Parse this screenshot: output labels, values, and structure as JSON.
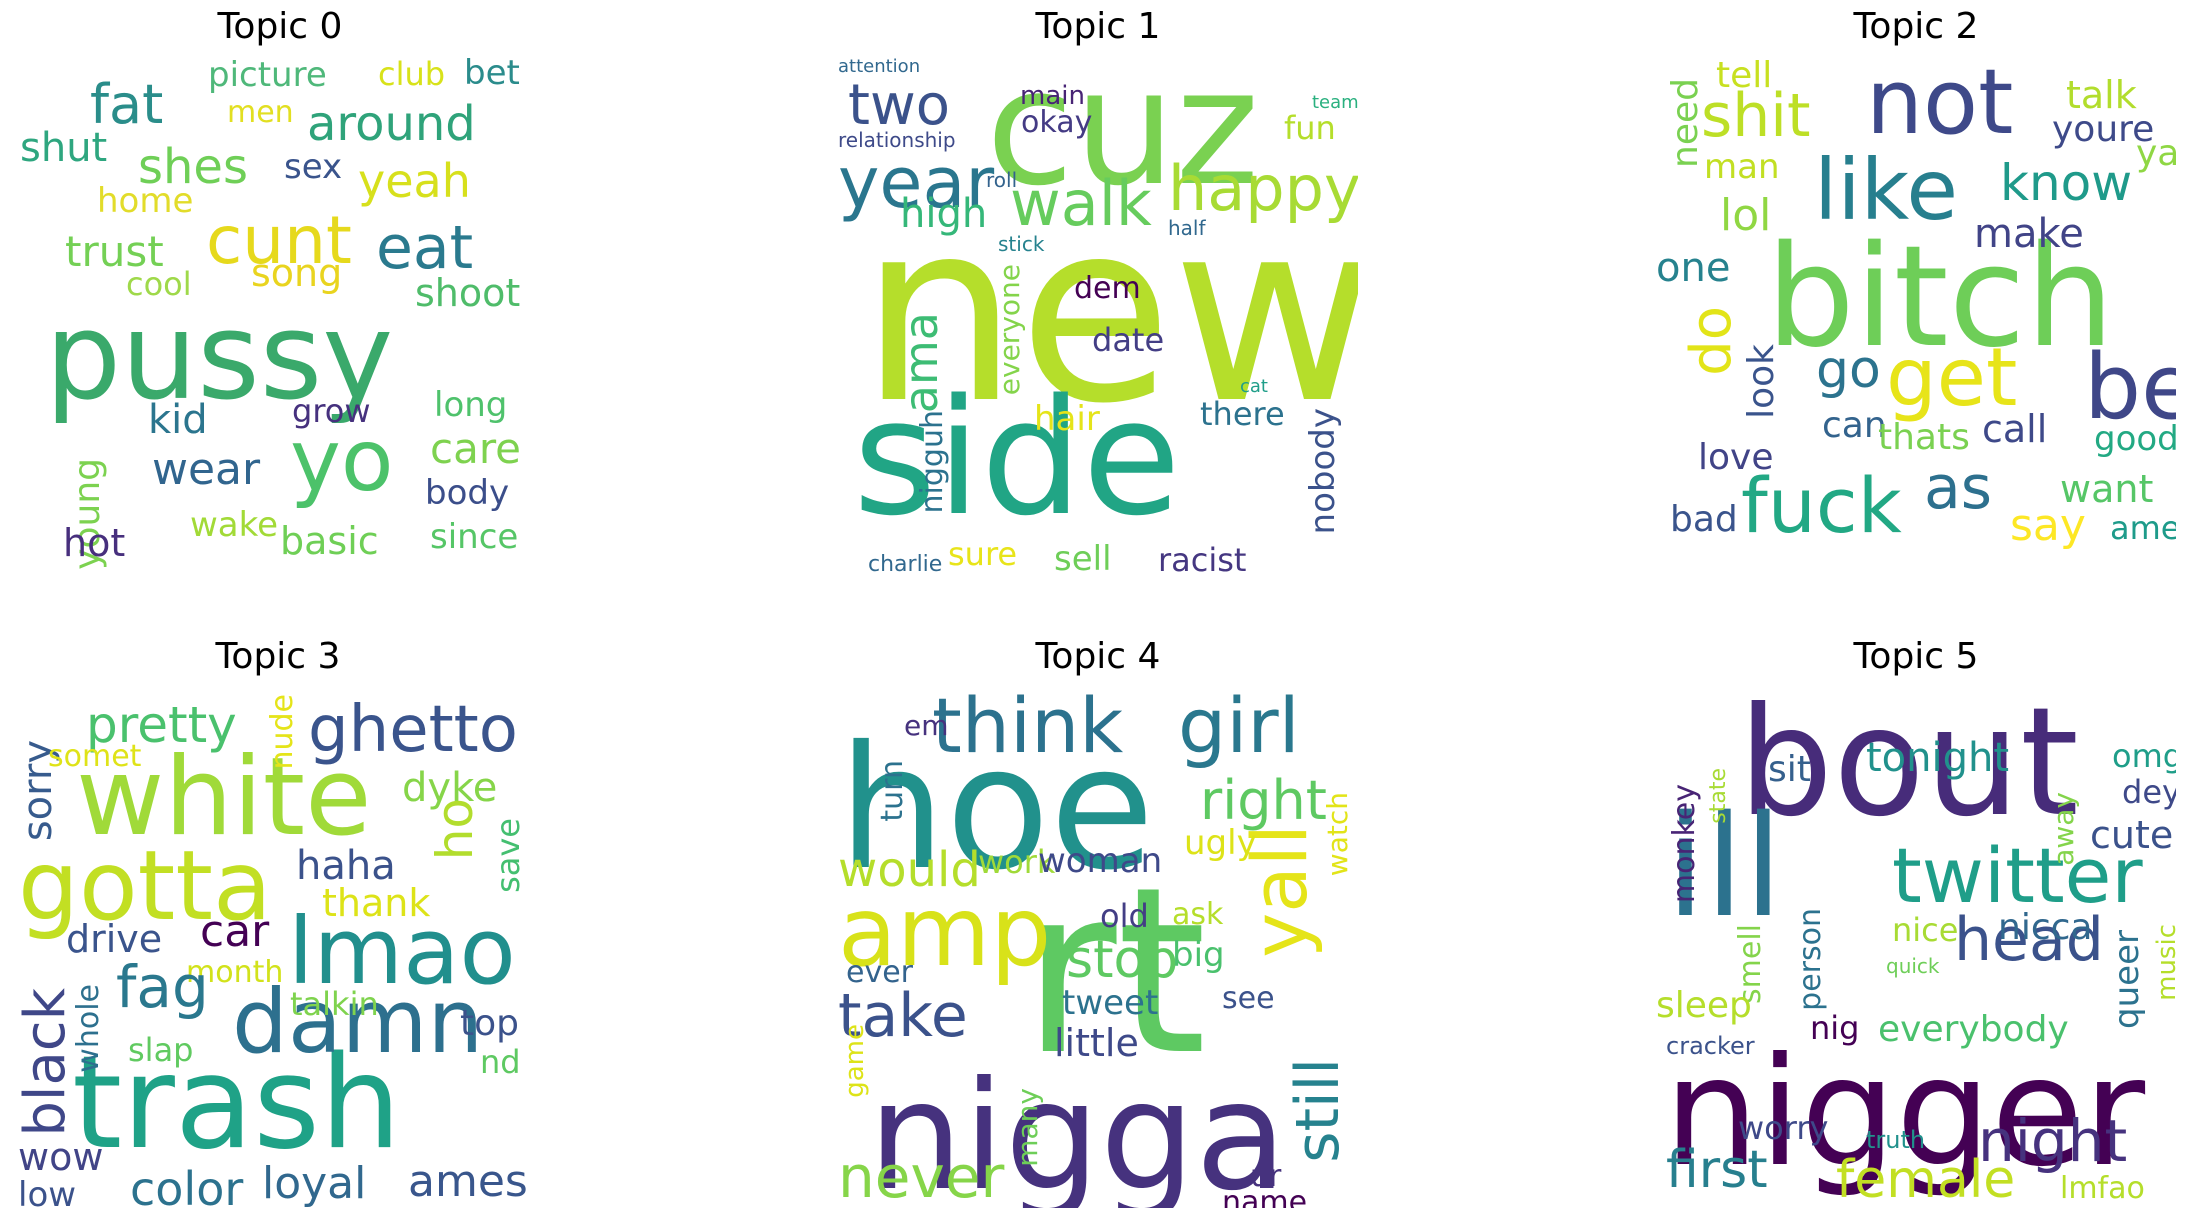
{
  "panels": [
    {
      "title": "Topic 0",
      "words": [
        {
          "t": "pussy",
          "c": "#3aa96b"
        },
        {
          "t": "yo",
          "c": "#4cc26a"
        },
        {
          "t": "cunt",
          "c": "#e6d91c"
        },
        {
          "t": "eat",
          "c": "#2a7a8e"
        },
        {
          "t": "fat",
          "c": "#2a8d8a"
        },
        {
          "t": "around",
          "c": "#2fa37a"
        },
        {
          "t": "shes",
          "c": "#6fcf57"
        },
        {
          "t": "yeah",
          "c": "#d7e01c"
        },
        {
          "t": "trust",
          "c": "#74d055"
        },
        {
          "t": "song",
          "c": "#e9d41f"
        },
        {
          "t": "shoot",
          "c": "#4fbc6a"
        },
        {
          "t": "picture",
          "c": "#4fb87a"
        },
        {
          "t": "club",
          "c": "#d8e21a"
        },
        {
          "t": "bet",
          "c": "#2b8c8c"
        },
        {
          "t": "men",
          "c": "#e2df21"
        },
        {
          "t": "shut",
          "c": "#2ea67f"
        },
        {
          "t": "sex",
          "c": "#3a548c"
        },
        {
          "t": "home",
          "c": "#e2dc2a"
        },
        {
          "t": "cool",
          "c": "#9fd94a"
        },
        {
          "t": "kid",
          "c": "#2b758e"
        },
        {
          "t": "grow",
          "c": "#46317e"
        },
        {
          "t": "long",
          "c": "#4fc26c"
        },
        {
          "t": "care",
          "c": "#7ed24f"
        },
        {
          "t": "wear",
          "c": "#31658e"
        },
        {
          "t": "young",
          "c": "#7cd250"
        },
        {
          "t": "body",
          "c": "#3b4e8a"
        },
        {
          "t": "wake",
          "c": "#a2da37"
        },
        {
          "t": "hot",
          "c": "#472f7d"
        },
        {
          "t": "basic",
          "c": "#6fcf56"
        },
        {
          "t": "since",
          "c": "#56c667"
        }
      ]
    },
    {
      "title": "Topic 1",
      "words": [
        {
          "t": "new",
          "c": "#b5de2b"
        },
        {
          "t": "cuz",
          "c": "#7ad151"
        },
        {
          "t": "side",
          "c": "#21a585"
        },
        {
          "t": "walk",
          "c": "#66cc5d"
        },
        {
          "t": "happy",
          "c": "#a8db34"
        },
        {
          "t": "year",
          "c": "#2a768e"
        },
        {
          "t": "two",
          "c": "#3b528b"
        },
        {
          "t": "high",
          "c": "#35b779"
        },
        {
          "t": "ama",
          "c": "#3dbc74"
        },
        {
          "t": "nigguh",
          "c": "#2c728e"
        },
        {
          "t": "attention",
          "c": "#31688e"
        },
        {
          "t": "relationship",
          "c": "#3e4a89"
        },
        {
          "t": "main",
          "c": "#482475"
        },
        {
          "t": "okay",
          "c": "#443b84"
        },
        {
          "t": "team",
          "c": "#2ab07f"
        },
        {
          "t": "fun",
          "c": "#b5de2b"
        },
        {
          "t": "roll",
          "c": "#33638d"
        },
        {
          "t": "half",
          "c": "#31688e"
        },
        {
          "t": "stick",
          "c": "#26828e"
        },
        {
          "t": "everyone",
          "c": "#84d44b"
        },
        {
          "t": "dem",
          "c": "#440154"
        },
        {
          "t": "date",
          "c": "#433e85"
        },
        {
          "t": "hair",
          "c": "#e5e419"
        },
        {
          "t": "cat",
          "c": "#1f9e89"
        },
        {
          "t": "there",
          "c": "#2c728e"
        },
        {
          "t": "nobody",
          "c": "#3b528b"
        },
        {
          "t": "sure",
          "c": "#e8e419"
        },
        {
          "t": "sell",
          "c": "#6ece58"
        },
        {
          "t": "racist",
          "c": "#453781"
        },
        {
          "t": "charlie",
          "c": "#31688e"
        }
      ]
    },
    {
      "title": "Topic 2",
      "words": [
        {
          "t": "bitch",
          "c": "#6ece58"
        },
        {
          "t": "not",
          "c": "#3e4989"
        },
        {
          "t": "like",
          "c": "#277f8e"
        },
        {
          "t": "shit",
          "c": "#bddf26"
        },
        {
          "t": "be",
          "c": "#3f4788"
        },
        {
          "t": "get",
          "c": "#e7e419"
        },
        {
          "t": "fuck",
          "c": "#22a884"
        },
        {
          "t": "as",
          "c": "#2d708e"
        },
        {
          "t": "know",
          "c": "#1f9a8a"
        },
        {
          "t": "do",
          "c": "#e2e418"
        },
        {
          "t": "go",
          "c": "#2c738e"
        },
        {
          "t": "tell",
          "c": "#c8e020"
        },
        {
          "t": "talk",
          "c": "#b2dd2d"
        },
        {
          "t": "youre",
          "c": "#3e4a89"
        },
        {
          "t": "ya",
          "c": "#8fd744"
        },
        {
          "t": "need",
          "c": "#7ad151"
        },
        {
          "t": "man",
          "c": "#c2df23"
        },
        {
          "t": "lol",
          "c": "#90d743"
        },
        {
          "t": "make",
          "c": "#414487"
        },
        {
          "t": "one",
          "c": "#26828e"
        },
        {
          "t": "look",
          "c": "#3a548c"
        },
        {
          "t": "can",
          "c": "#33638d"
        },
        {
          "t": "thats",
          "c": "#7ad151"
        },
        {
          "t": "call",
          "c": "#3e4989"
        },
        {
          "t": "good",
          "c": "#23a983"
        },
        {
          "t": "love",
          "c": "#414487"
        },
        {
          "t": "want",
          "c": "#56c667"
        },
        {
          "t": "bad",
          "c": "#3a548c"
        },
        {
          "t": "say",
          "c": "#fde725"
        },
        {
          "t": "ame",
          "c": "#1e9b8a"
        }
      ]
    },
    {
      "title": "Topic 3",
      "words": [
        {
          "t": "white",
          "c": "#a0da39"
        },
        {
          "t": "gotta",
          "c": "#c2df23"
        },
        {
          "t": "lmao",
          "c": "#218f8d"
        },
        {
          "t": "trash",
          "c": "#1fa287"
        },
        {
          "t": "damn",
          "c": "#2d708e"
        },
        {
          "t": "ghetto",
          "c": "#3a548c"
        },
        {
          "t": "pretty",
          "c": "#4ac16d"
        },
        {
          "t": "sorry",
          "c": "#375b8d"
        },
        {
          "t": "somet",
          "c": "#dfe318"
        },
        {
          "t": "nude",
          "c": "#e5e419"
        },
        {
          "t": "dyke",
          "c": "#86d549"
        },
        {
          "t": "ho",
          "c": "#b2dd2d"
        },
        {
          "t": "save",
          "c": "#44bf70"
        },
        {
          "t": "haha",
          "c": "#3b528b"
        },
        {
          "t": "thank",
          "c": "#dde318"
        },
        {
          "t": "black",
          "c": "#3f4788"
        },
        {
          "t": "drive",
          "c": "#3a548c"
        },
        {
          "t": "car",
          "c": "#440154"
        },
        {
          "t": "month",
          "c": "#d2e21b"
        },
        {
          "t": "fag",
          "c": "#2a788e"
        },
        {
          "t": "talkin",
          "c": "#7fd34e"
        },
        {
          "t": "whole",
          "c": "#2d708e"
        },
        {
          "t": "slap",
          "c": "#60ca60"
        },
        {
          "t": "top",
          "c": "#3b528b"
        },
        {
          "t": "nd",
          "c": "#5ec962"
        },
        {
          "t": "wow",
          "c": "#414487"
        },
        {
          "t": "low",
          "c": "#3b528b"
        },
        {
          "t": "color",
          "c": "#2c728e"
        },
        {
          "t": "loyal",
          "c": "#31688e"
        },
        {
          "t": "ames",
          "c": "#39568c"
        }
      ]
    },
    {
      "title": "Topic 4",
      "words": [
        {
          "t": "hoe",
          "c": "#21918c"
        },
        {
          "t": "rt",
          "c": "#5ec962"
        },
        {
          "t": "nigga",
          "c": "#46327e"
        },
        {
          "t": "amp",
          "c": "#d8e219"
        },
        {
          "t": "think",
          "c": "#2c728e"
        },
        {
          "t": "girl",
          "c": "#2a788e"
        },
        {
          "t": "right",
          "c": "#5ec962"
        },
        {
          "t": "yall",
          "c": "#e5e419"
        },
        {
          "t": "still",
          "c": "#26828e"
        },
        {
          "t": "take",
          "c": "#3b528b"
        },
        {
          "t": "never",
          "c": "#86d549"
        },
        {
          "t": "would",
          "c": "#b5de2b"
        },
        {
          "t": "stop",
          "c": "#5ec962"
        },
        {
          "t": "em",
          "c": "#46327e"
        },
        {
          "t": "turn",
          "c": "#2c728e"
        },
        {
          "t": "work",
          "c": "#a0da39"
        },
        {
          "t": "woman",
          "c": "#3e4989"
        },
        {
          "t": "ugly",
          "c": "#dde318"
        },
        {
          "t": "watch",
          "c": "#e2e418"
        },
        {
          "t": "old",
          "c": "#433e85"
        },
        {
          "t": "ask",
          "c": "#b5de2b"
        },
        {
          "t": "big",
          "c": "#4ac16d"
        },
        {
          "t": "tweet",
          "c": "#2c728e"
        },
        {
          "t": "see",
          "c": "#3b528b"
        },
        {
          "t": "little",
          "c": "#3e4989"
        },
        {
          "t": "ever",
          "c": "#33638d"
        },
        {
          "t": "game",
          "c": "#dde318"
        },
        {
          "t": "many",
          "c": "#6ece58"
        },
        {
          "t": "ur",
          "c": "#46327e"
        },
        {
          "t": "name",
          "c": "#440154"
        }
      ]
    },
    {
      "title": "Topic 5",
      "words": [
        {
          "t": "bout",
          "c": "#472c7a"
        },
        {
          "t": "ill",
          "c": "#2c728e"
        },
        {
          "t": "nigger",
          "c": "#440154"
        },
        {
          "t": "twitter",
          "c": "#1f9e89"
        },
        {
          "t": "head",
          "c": "#3b528b"
        },
        {
          "t": "night",
          "c": "#46327e"
        },
        {
          "t": "first",
          "c": "#277f8e"
        },
        {
          "t": "female",
          "c": "#c2df23"
        },
        {
          "t": "tonight",
          "c": "#21918c"
        },
        {
          "t": "sit",
          "c": "#35608d"
        },
        {
          "t": "state",
          "c": "#a8db34"
        },
        {
          "t": "monkey",
          "c": "#482475"
        },
        {
          "t": "omg",
          "c": "#1f9e89"
        },
        {
          "t": "dey",
          "c": "#3e4989"
        },
        {
          "t": "cute",
          "c": "#3b528b"
        },
        {
          "t": "away",
          "c": "#84d44b"
        },
        {
          "t": "smell",
          "c": "#84d44b"
        },
        {
          "t": "person",
          "c": "#2c728e"
        },
        {
          "t": "nice",
          "c": "#a8db34"
        },
        {
          "t": "quick",
          "c": "#6ece58"
        },
        {
          "t": "nicca",
          "c": "#31688e"
        },
        {
          "t": "queer",
          "c": "#2c728e"
        },
        {
          "t": "music",
          "c": "#b5de2b"
        },
        {
          "t": "sleep",
          "c": "#b5de2b"
        },
        {
          "t": "nig",
          "c": "#440154"
        },
        {
          "t": "everybody",
          "c": "#4ac16d"
        },
        {
          "t": "cracker",
          "c": "#3b528b"
        },
        {
          "t": "worry",
          "c": "#3e4989"
        },
        {
          "t": "truth",
          "c": "#21918c"
        },
        {
          "t": "lmfao",
          "c": "#b5de2b"
        }
      ]
    }
  ]
}
